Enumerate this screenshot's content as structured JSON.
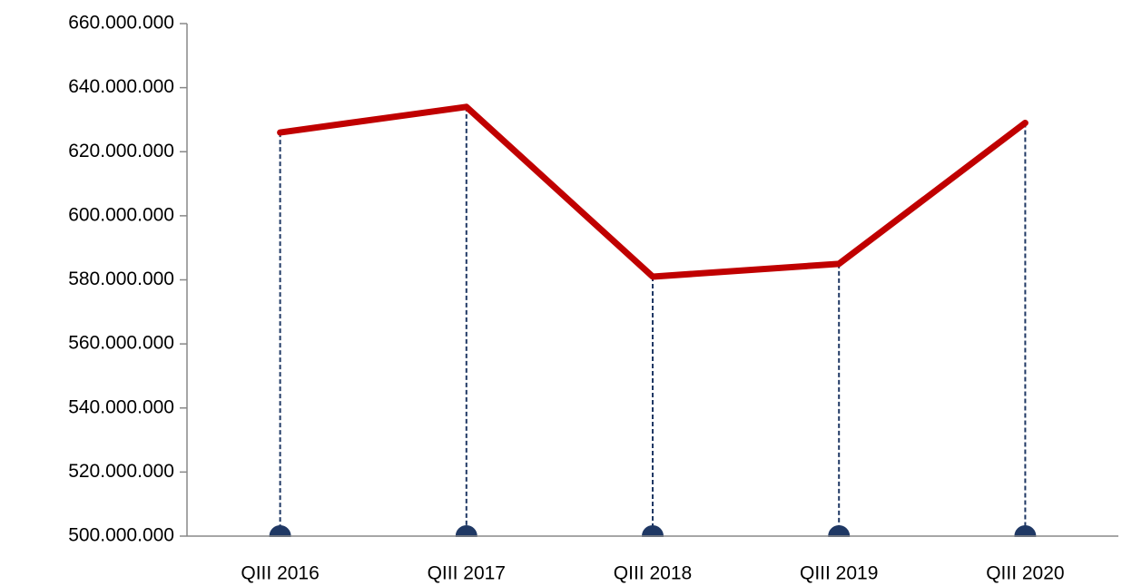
{
  "chart_data": {
    "type": "line",
    "categories": [
      "QIII 2016",
      "QIII 2017",
      "QIII 2018",
      "QIII 2019",
      "QIII 2020"
    ],
    "series": [
      {
        "name": "Value",
        "color": "#c00000",
        "values": [
          626000000,
          634000000,
          581000000,
          585000000,
          629000000
        ]
      }
    ],
    "drop_line_color": "#1f3864",
    "ylim": [
      500000000,
      660000000
    ],
    "yticks": [
      {
        "value": 500000000,
        "label": "500.000.000"
      },
      {
        "value": 520000000,
        "label": "520.000.000"
      },
      {
        "value": 540000000,
        "label": "540.000.000"
      },
      {
        "value": 560000000,
        "label": "560.000.000"
      },
      {
        "value": 580000000,
        "label": "580.000.000"
      },
      {
        "value": 600000000,
        "label": "600.000.000"
      },
      {
        "value": 620000000,
        "label": "620.000.000"
      },
      {
        "value": 640000000,
        "label": "640.000.000"
      },
      {
        "value": 660000000,
        "label": "660.000.000"
      }
    ],
    "grid": false
  }
}
